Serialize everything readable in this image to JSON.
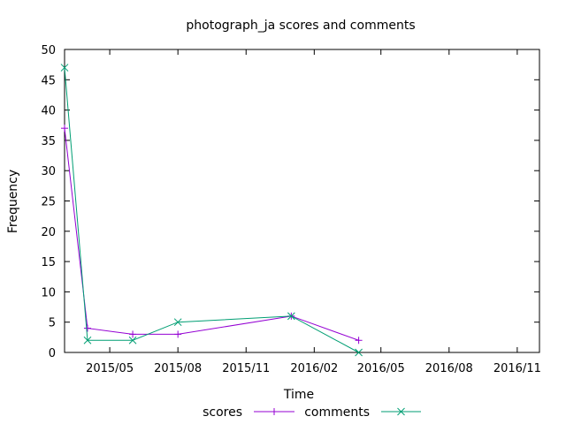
{
  "chart_data": {
    "type": "line",
    "title": "photograph_ja scores and comments",
    "xlabel": "Time",
    "ylabel": "Frequency",
    "x_axis_type": "date",
    "xlim": [
      "2015-03-01",
      "2016-12-01"
    ],
    "ylim": [
      0,
      50
    ],
    "yticks": [
      0,
      5,
      10,
      15,
      20,
      25,
      30,
      35,
      40,
      45,
      50
    ],
    "xticks": [
      {
        "date": "2015-05-01",
        "label": "2015/05"
      },
      {
        "date": "2015-08-01",
        "label": "2015/08"
      },
      {
        "date": "2015-11-01",
        "label": "2015/11"
      },
      {
        "date": "2016-02-01",
        "label": "2016/02"
      },
      {
        "date": "2016-05-01",
        "label": "2016/05"
      },
      {
        "date": "2016-08-01",
        "label": "2016/08"
      },
      {
        "date": "2016-11-01",
        "label": "2016/11"
      }
    ],
    "grid": false,
    "legend_position": "bottom-center",
    "series": [
      {
        "name": "scores",
        "color": "#9400d3",
        "marker": "plus",
        "points": [
          {
            "x": "2015-03-01",
            "y": 37
          },
          {
            "x": "2015-04-01",
            "y": 4
          },
          {
            "x": "2015-06-01",
            "y": 3
          },
          {
            "x": "2015-08-01",
            "y": 3
          },
          {
            "x": "2016-01-01",
            "y": 6
          },
          {
            "x": "2016-04-01",
            "y": 2
          }
        ]
      },
      {
        "name": "comments",
        "color": "#009e73",
        "marker": "cross",
        "points": [
          {
            "x": "2015-03-01",
            "y": 47
          },
          {
            "x": "2015-04-01",
            "y": 2
          },
          {
            "x": "2015-06-01",
            "y": 2
          },
          {
            "x": "2015-08-01",
            "y": 5
          },
          {
            "x": "2016-01-01",
            "y": 6
          },
          {
            "x": "2016-04-01",
            "y": 0
          }
        ]
      }
    ]
  }
}
